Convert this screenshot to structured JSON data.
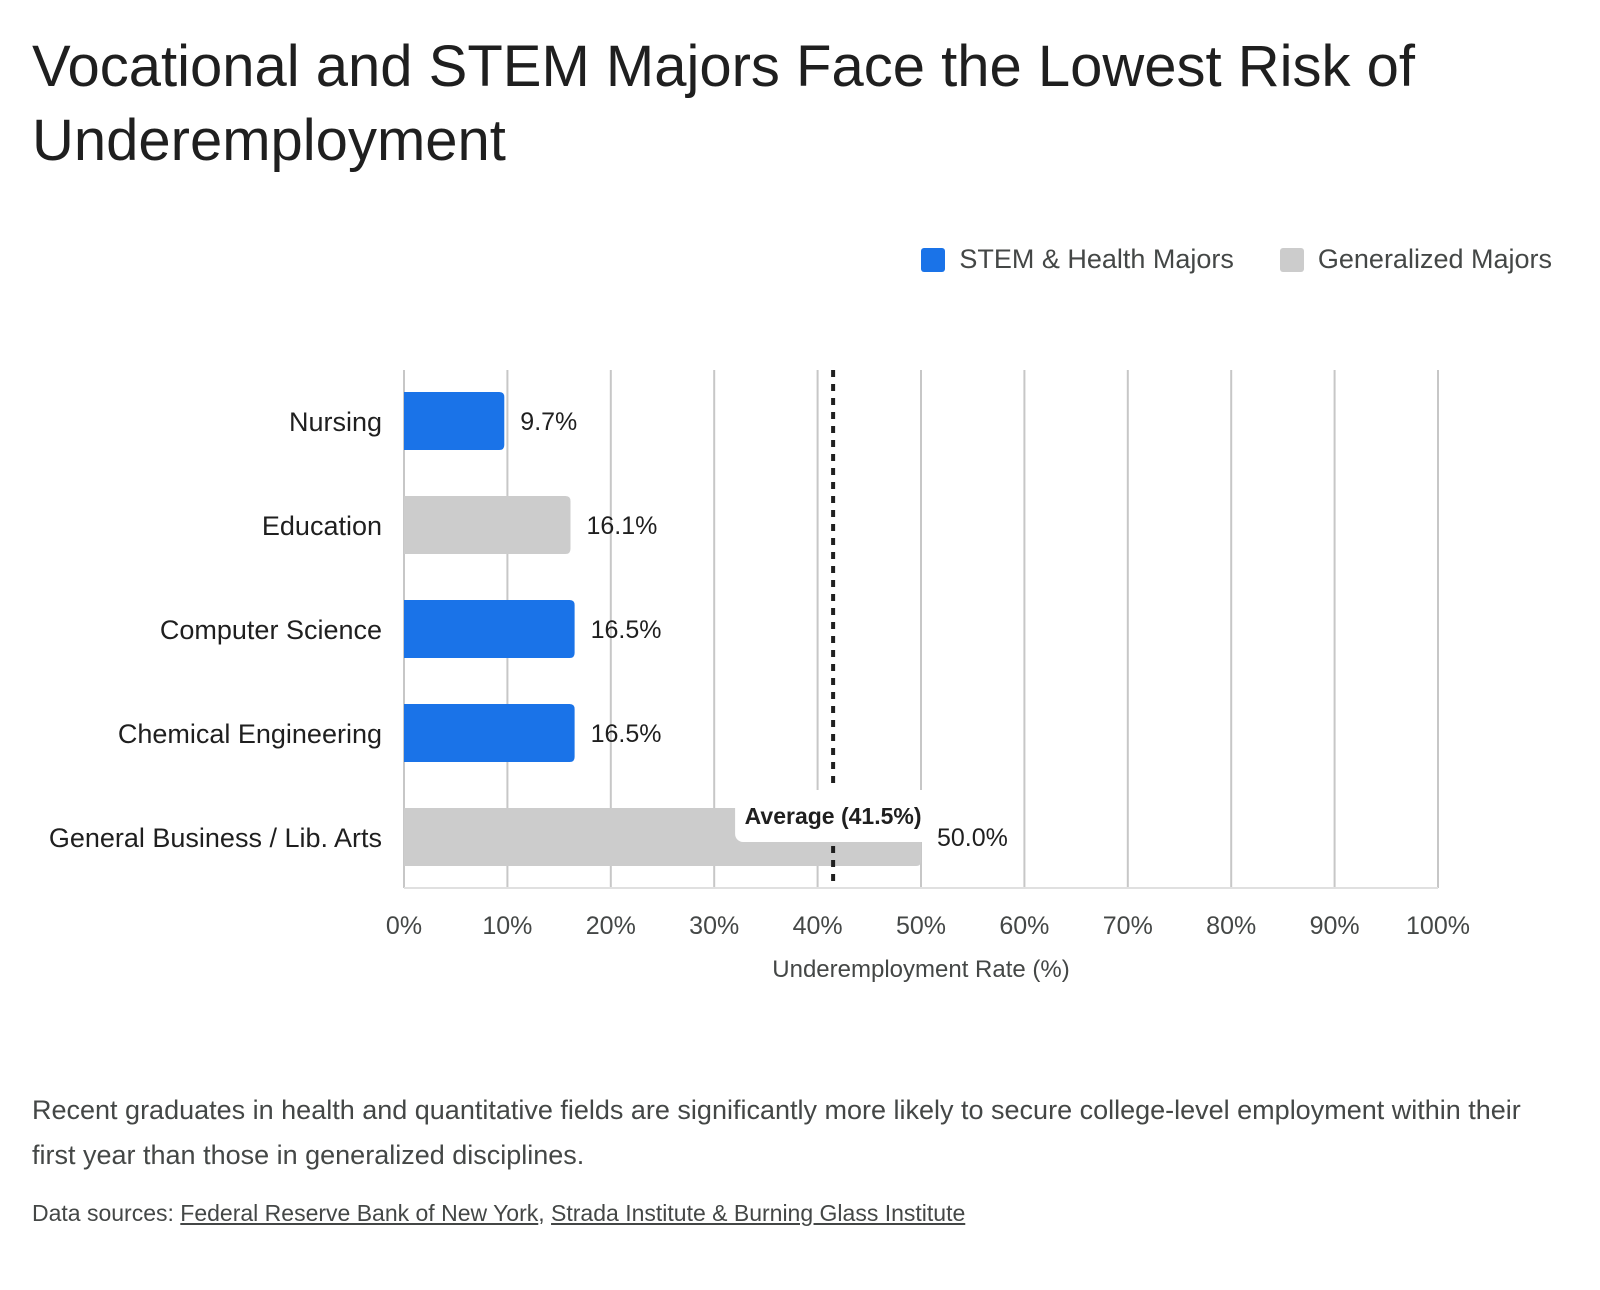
{
  "header": {
    "title": "Vocational and STEM Majors Face the Lowest Risk of Underemployment"
  },
  "legend": [
    {
      "label": "STEM & Health Majors",
      "color": "#1a73e8"
    },
    {
      "label": "Generalized Majors",
      "color": "#cccccc"
    }
  ],
  "chart_data": {
    "type": "bar",
    "orientation": "horizontal",
    "title": "Vocational and STEM Majors Face the Lowest Risk of Underemployment",
    "xlabel": "Underemployment Rate (%)",
    "ylabel": "",
    "xlim": [
      0,
      100
    ],
    "xticks": [
      "0%",
      "10%",
      "20%",
      "30%",
      "40%",
      "50%",
      "60%",
      "70%",
      "80%",
      "90%",
      "100%"
    ],
    "xtick_values": [
      0,
      10,
      20,
      30,
      40,
      50,
      60,
      70,
      80,
      90,
      100
    ],
    "grid": true,
    "legend_position": "top-right",
    "categories": [
      "Nursing",
      "Education",
      "Computer Science",
      "Chemical Engineering",
      "General Business / Lib. Arts"
    ],
    "values": [
      9.7,
      16.1,
      16.5,
      16.5,
      50.0
    ],
    "value_labels": [
      "9.7%",
      "16.1%",
      "16.5%",
      "16.5%",
      "50.0%"
    ],
    "groups": [
      "STEM & Health Majors",
      "Generalized Majors",
      "STEM & Health Majors",
      "STEM & Health Majors",
      "Generalized Majors"
    ],
    "colors": {
      "STEM & Health Majors": "#1a73e8",
      "Generalized Majors": "#cccccc"
    },
    "reference_line": {
      "value": 41.5,
      "label": "Average (41.5%)",
      "style": "dotted"
    }
  },
  "footer": {
    "description": "Recent graduates in health and quantitative fields are significantly more likely to secure college-level employment within their first year than those in generalized disciplines.",
    "sources_prefix": "Data sources: ",
    "source_links": [
      "Federal Reserve Bank of New York",
      "Strada Institute & Burning Glass Institute"
    ],
    "sources_separator": ", "
  }
}
